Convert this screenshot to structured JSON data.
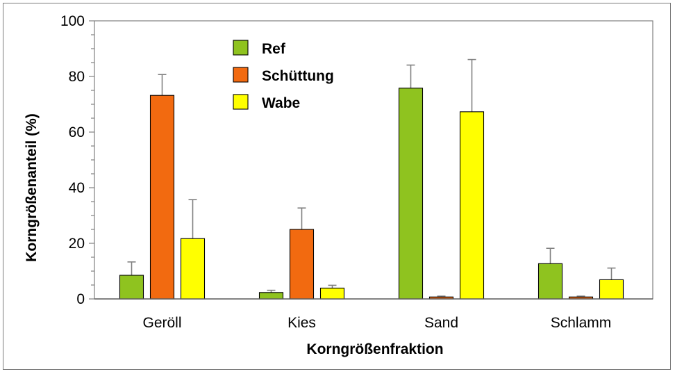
{
  "chart_data": {
    "type": "bar",
    "title": "",
    "xlabel": "Korngrößenfraktion",
    "ylabel": "Korngrößenanteil (%)",
    "ylim": [
      0,
      100
    ],
    "yticks": [
      "0",
      "20",
      "40",
      "60",
      "80",
      "100"
    ],
    "categories": [
      "Geröll",
      "Kies",
      "Sand",
      "Schlamm"
    ],
    "series": [
      {
        "name": "Ref",
        "color": "#8fc31f",
        "values": [
          8.5,
          2.3,
          75.8,
          12.7
        ],
        "errors": [
          4.8,
          0.8,
          8.3,
          5.5
        ]
      },
      {
        "name": "Schüttung",
        "color": "#f26a10",
        "values": [
          73.2,
          25.0,
          0.7,
          0.7
        ],
        "errors": [
          7.5,
          7.7,
          0.3,
          0.3
        ]
      },
      {
        "name": "Wabe",
        "color": "#ffff00",
        "values": [
          21.7,
          3.9,
          67.3,
          6.9
        ],
        "errors": [
          14.0,
          1.0,
          18.8,
          4.2
        ]
      }
    ],
    "legend_position": "top-left inside plot",
    "grid": false
  }
}
